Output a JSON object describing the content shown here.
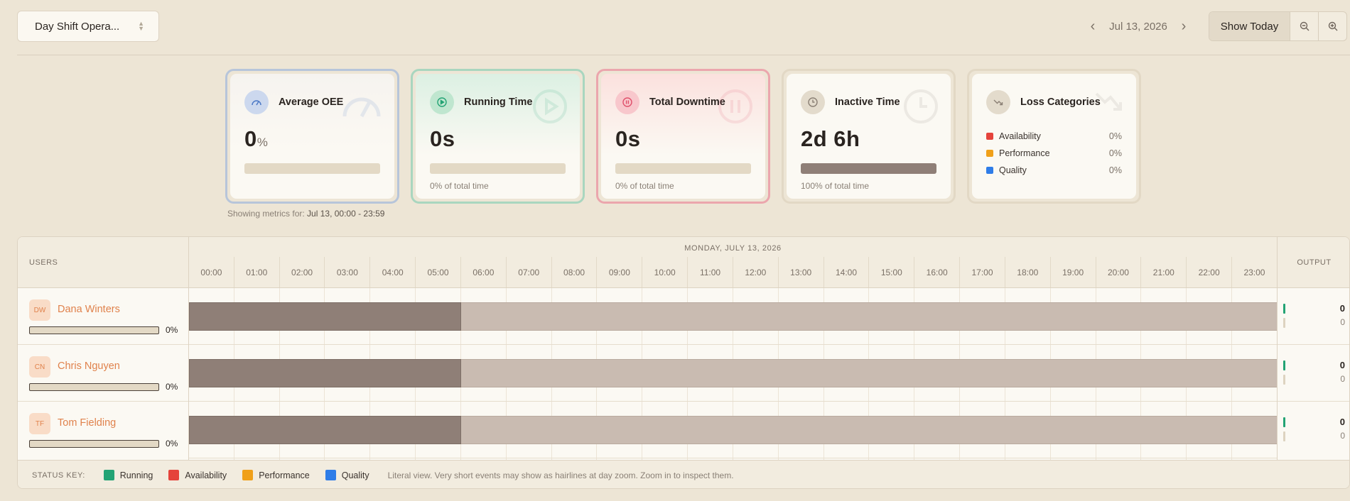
{
  "header": {
    "shift_select": "Day Shift Opera...",
    "date": "Jul 13, 2026",
    "show_today": "Show Today"
  },
  "cards": {
    "oee": {
      "title": "Average OEE",
      "value": "0",
      "unit": "%",
      "fill": 0
    },
    "running": {
      "title": "Running Time",
      "value": "0s",
      "sub": "0% of total time",
      "fill": 0
    },
    "downtime": {
      "title": "Total Downtime",
      "value": "0s",
      "sub": "0% of total time",
      "fill": 0
    },
    "inactive": {
      "title": "Inactive Time",
      "value": "2d 6h",
      "sub": "100% of total time",
      "fill": 1.0
    },
    "loss": {
      "title": "Loss Categories",
      "items": [
        {
          "name": "Availability",
          "pct": "0%",
          "color": "#e5433b"
        },
        {
          "name": "Performance",
          "pct": "0%",
          "color": "#f0a019"
        },
        {
          "name": "Quality",
          "pct": "0%",
          "color": "#2f7de8"
        }
      ]
    }
  },
  "metrics_note": {
    "prefix": "Showing metrics for:",
    "range": "Jul 13, 00:00 - 23:59"
  },
  "timeline": {
    "users_header": "USERS",
    "output_header": "OUTPUT",
    "date_label": "MONDAY, JULY 13, 2026",
    "hours": [
      "00:00",
      "01:00",
      "02:00",
      "03:00",
      "04:00",
      "05:00",
      "06:00",
      "07:00",
      "08:00",
      "09:00",
      "10:00",
      "11:00",
      "12:00",
      "13:00",
      "14:00",
      "15:00",
      "16:00",
      "17:00",
      "18:00",
      "19:00",
      "20:00",
      "21:00",
      "22:00",
      "23:00"
    ],
    "elapsed_fraction": 0.25,
    "users": [
      {
        "initials": "DW",
        "name": "Dana Winters",
        "oee": "0%",
        "output_good": "0",
        "output_bad": "0"
      },
      {
        "initials": "CN",
        "name": "Chris Nguyen",
        "oee": "0%",
        "output_good": "0",
        "output_bad": "0"
      },
      {
        "initials": "TF",
        "name": "Tom Fielding",
        "oee": "0%",
        "output_good": "0",
        "output_bad": "0"
      }
    ]
  },
  "legend": {
    "title": "STATUS KEY:",
    "items": [
      {
        "name": "Running",
        "color": "#23a374"
      },
      {
        "name": "Availability",
        "color": "#e5433b"
      },
      {
        "name": "Performance",
        "color": "#f0a019"
      },
      {
        "name": "Quality",
        "color": "#2f7de8"
      }
    ],
    "note": "Literal view. Very short events may show as hairlines at day zoom. Zoom in to inspect them."
  }
}
